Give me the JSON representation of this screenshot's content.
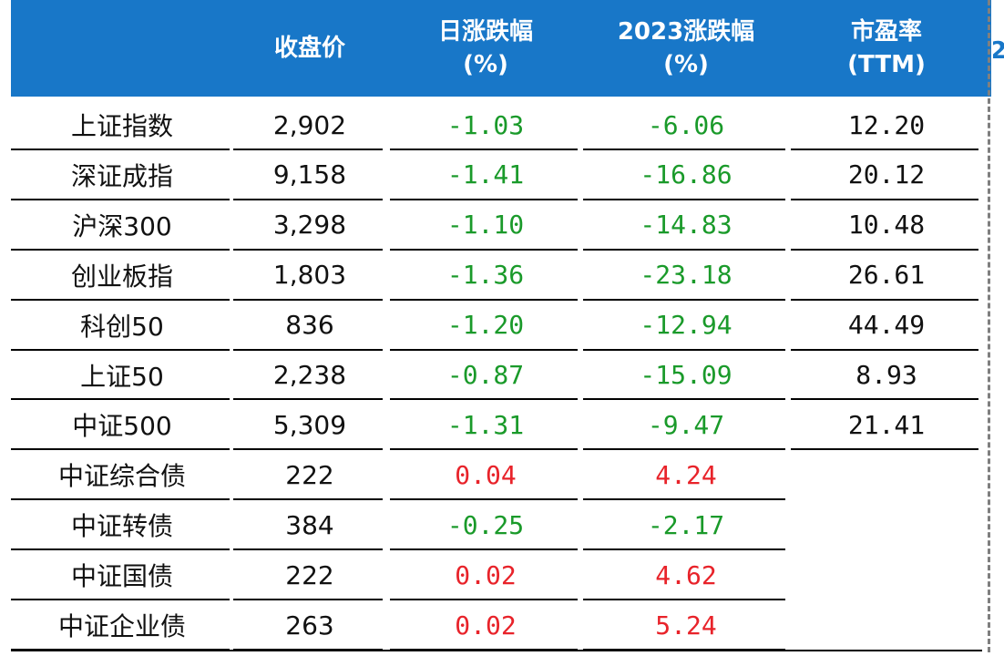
{
  "header": {
    "name": "",
    "close": "收盘价",
    "daily_change": "日涨跌幅\n(%)",
    "ytd_change": "2023涨跌幅\n(%)",
    "pe": "市盈率\n(TTM)",
    "extra": "2"
  },
  "colors": {
    "header_bg": "#1877c8",
    "negative": "#1a9a2a",
    "positive": "#e8232a"
  },
  "rows": [
    {
      "name": "上证指数",
      "close": "2,902",
      "daily": "-1.03",
      "ytd": "-6.06",
      "pe": "12.20"
    },
    {
      "name": "深证成指",
      "close": "9,158",
      "daily": "-1.41",
      "ytd": "-16.86",
      "pe": "20.12"
    },
    {
      "name": "沪深300",
      "close": "3,298",
      "daily": "-1.10",
      "ytd": "-14.83",
      "pe": "10.48"
    },
    {
      "name": "创业板指",
      "close": "1,803",
      "daily": "-1.36",
      "ytd": "-23.18",
      "pe": "26.61"
    },
    {
      "name": "科创50",
      "close": "836",
      "daily": "-1.20",
      "ytd": "-12.94",
      "pe": "44.49"
    },
    {
      "name": "上证50",
      "close": "2,238",
      "daily": "-0.87",
      "ytd": "-15.09",
      "pe": "8.93"
    },
    {
      "name": "中证500",
      "close": "5,309",
      "daily": "-1.31",
      "ytd": "-9.47",
      "pe": "21.41"
    },
    {
      "name": "中证综合债",
      "close": "222",
      "daily": "0.04",
      "ytd": "4.24",
      "pe": ""
    },
    {
      "name": "中证转债",
      "close": "384",
      "daily": "-0.25",
      "ytd": "-2.17",
      "pe": ""
    },
    {
      "name": "中证国债",
      "close": "222",
      "daily": "0.02",
      "ytd": "4.62",
      "pe": ""
    },
    {
      "name": "中证企业债",
      "close": "263",
      "daily": "0.02",
      "ytd": "5.24",
      "pe": ""
    }
  ]
}
